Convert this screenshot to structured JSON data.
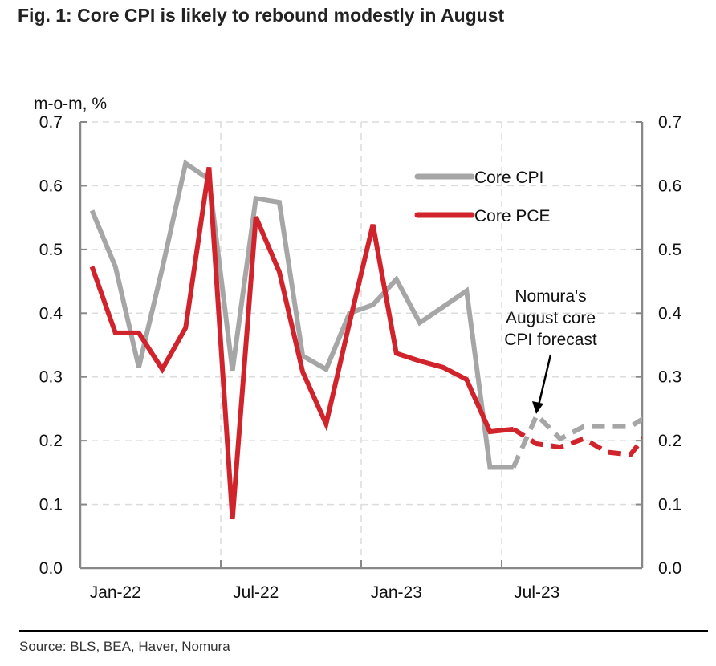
{
  "title": "Fig. 1: Core CPI is likely to rebound modestly in August",
  "source": "Source: BLS, BEA, Haver, Nomura",
  "chart_data": {
    "type": "line",
    "title": "Fig. 1: Core CPI is likely to rebound modestly in August",
    "ylabel": "m-o-m, %",
    "xlabel": "",
    "ylim": [
      0.0,
      0.7
    ],
    "yticks": [
      "0.0",
      "0.1",
      "0.2",
      "0.3",
      "0.4",
      "0.5",
      "0.6",
      "0.7"
    ],
    "xtick_labels": [
      "Jan-22",
      "Jul-22",
      "Jan-23",
      "Jul-23"
    ],
    "x": [
      "Jan-22",
      "Feb-22",
      "Mar-22",
      "Apr-22",
      "May-22",
      "Jun-22",
      "Jul-22",
      "Aug-22",
      "Sep-22",
      "Oct-22",
      "Nov-22",
      "Dec-22",
      "Jan-23",
      "Feb-23",
      "Mar-23",
      "Apr-23",
      "May-23",
      "Jun-23",
      "Jul-23",
      "Aug-23",
      "Sep-23",
      "Oct-23",
      "Nov-23",
      "Dec-23",
      "Jan-24"
    ],
    "forecast_start": "Jul-23",
    "grid": true,
    "legend_position": "top-right",
    "series": [
      {
        "name": "Core CPI",
        "color": "#a6a6a6",
        "values": [
          0.561,
          0.473,
          0.315,
          0.47,
          0.635,
          0.61,
          0.31,
          0.58,
          0.574,
          0.333,
          0.312,
          0.4,
          0.413,
          0.453,
          0.385,
          0.41,
          0.435,
          0.158,
          0.158,
          0.24,
          0.203,
          0.222,
          0.222,
          0.222,
          0.245
        ]
      },
      {
        "name": "Core PCE",
        "color": "#d0232b",
        "values": [
          0.473,
          0.369,
          0.369,
          0.312,
          0.377,
          0.629,
          0.077,
          0.551,
          0.465,
          0.308,
          0.226,
          0.385,
          0.539,
          0.337,
          0.325,
          0.315,
          0.296,
          0.214,
          0.218,
          0.195,
          0.19,
          0.203,
          0.182,
          0.178,
          0.225
        ]
      }
    ],
    "annotation": {
      "text": [
        "Nomura's",
        "August core",
        "CPI forecast"
      ],
      "points_to": "Aug-23"
    }
  }
}
